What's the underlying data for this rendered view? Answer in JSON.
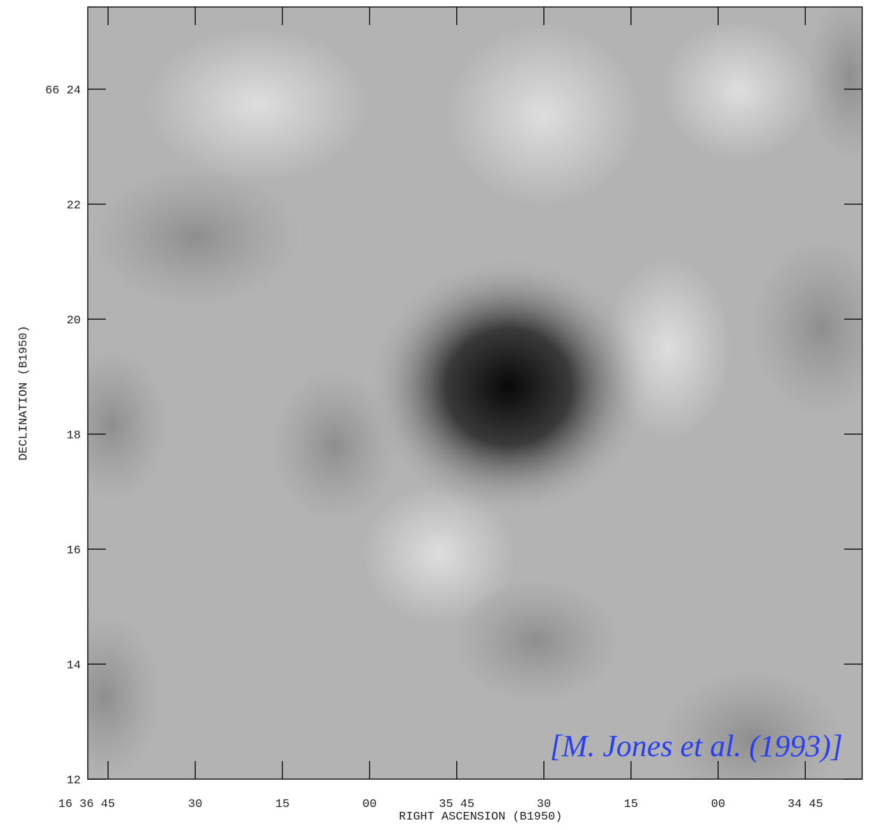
{
  "chart_data": {
    "type": "image",
    "x_label": "RIGHT ASCENSION (B1950)",
    "y_label": "DECLINATION (B1950)",
    "annotation": "[M. Jones et al. (1993)]",
    "xlim": [
      168.5,
      35.2
    ],
    "xticks": [
      {
        "value": 165,
        "label": "16 36 45"
      },
      {
        "value": 150,
        "label": "30"
      },
      {
        "value": 135,
        "label": "15"
      },
      {
        "value": 120,
        "label": "00"
      },
      {
        "value": 105,
        "label": "35 45"
      },
      {
        "value": 90,
        "label": "30"
      },
      {
        "value": 75,
        "label": "15"
      },
      {
        "value": 60,
        "label": "00"
      },
      {
        "value": 45,
        "label": "34 45"
      }
    ],
    "ylim": [
      12,
      25.43
    ],
    "yticks": [
      12,
      14,
      16,
      18,
      20,
      22,
      {
        "value": 24,
        "label": "66 24"
      }
    ]
  }
}
